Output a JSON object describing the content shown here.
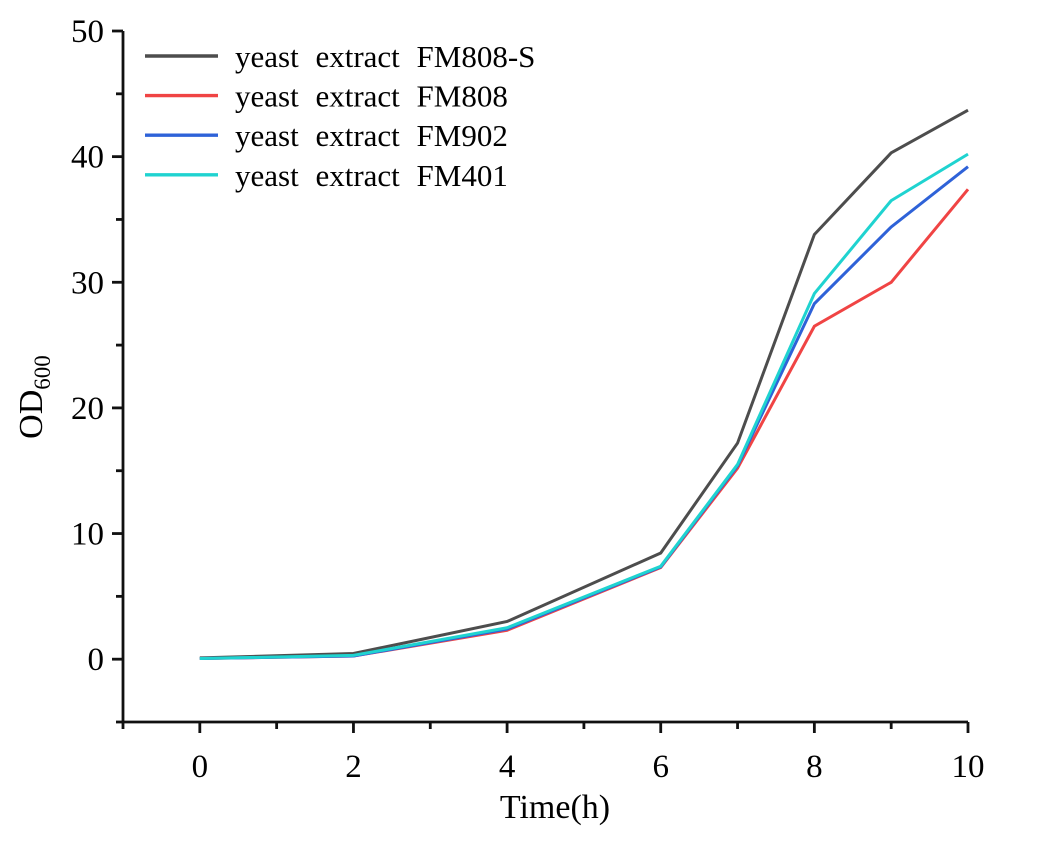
{
  "chart_data": {
    "type": "line",
    "title": "",
    "xlabel": "Time(h)",
    "ylabel": "OD",
    "ylabel_sub": "600",
    "x": [
      0,
      2,
      4,
      6,
      7,
      8,
      9,
      10
    ],
    "series": [
      {
        "name": "yeast extract FM808-S",
        "color": "#4d4d4d",
        "values": [
          0.1,
          0.45,
          3.0,
          8.45,
          17.2,
          33.8,
          40.3,
          43.7
        ]
      },
      {
        "name": "yeast extract FM808",
        "color": "#f04444",
        "values": [
          0.05,
          0.25,
          2.3,
          7.3,
          15.2,
          26.5,
          30.0,
          37.4
        ]
      },
      {
        "name": "yeast extract FM902",
        "color": "#2e62d8",
        "values": [
          0.05,
          0.25,
          2.4,
          7.35,
          15.4,
          28.3,
          34.4,
          39.2
        ]
      },
      {
        "name": "yeast extract FM401",
        "color": "#1fd3d0",
        "values": [
          0.05,
          0.3,
          2.5,
          7.4,
          15.5,
          29.1,
          36.5,
          40.2
        ]
      }
    ],
    "xlim": [
      -1,
      10
    ],
    "ylim": [
      -5,
      50
    ],
    "x_major_ticks": [
      0,
      2,
      4,
      6,
      8,
      10
    ],
    "x_minor_ticks": [
      -1,
      1,
      3,
      5,
      7,
      9
    ],
    "y_major_ticks": [
      0,
      10,
      20,
      30,
      40,
      50
    ],
    "y_minor_ticks": [
      -5,
      5,
      15,
      25,
      35,
      45
    ],
    "grid": false,
    "legend_position": "top-left",
    "axis_color": "#111111"
  }
}
